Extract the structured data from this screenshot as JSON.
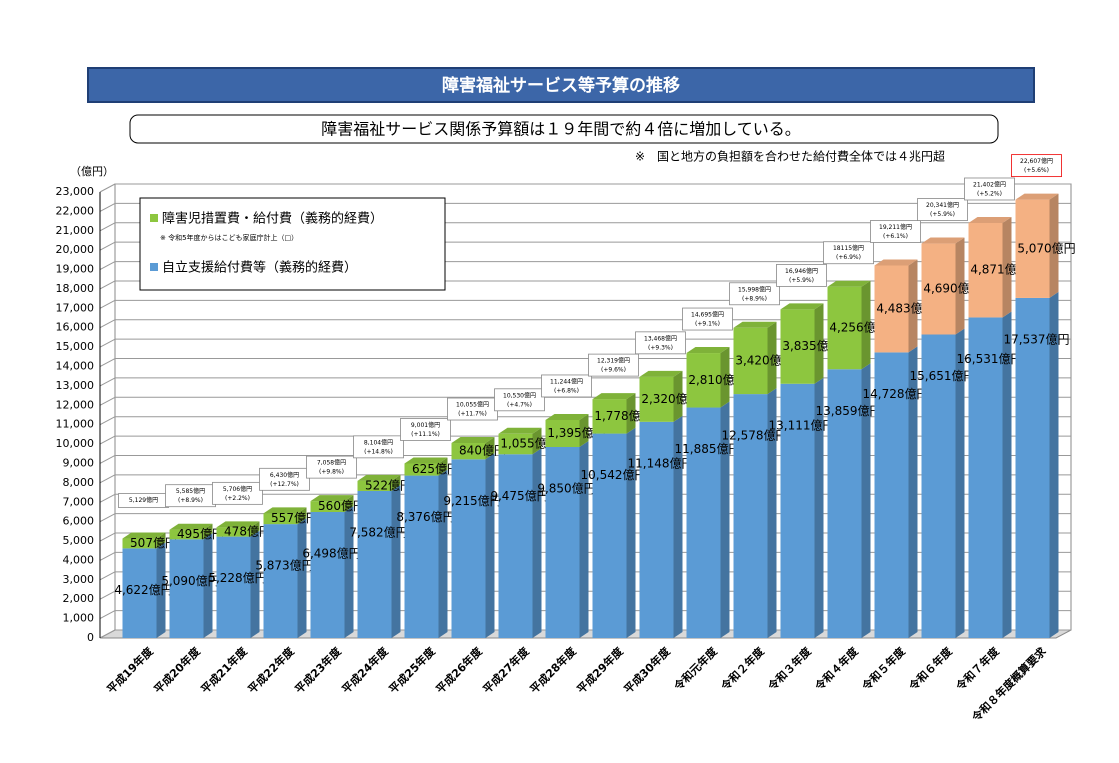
{
  "chart_data": {
    "type": "stacked-bar-3d",
    "title": "障害福祉サービス等予算の推移",
    "subtitle": "障害福祉サービス関係予算額は１９年間で約４倍に増加している。",
    "note": "※　国と地方の負担額を合わせた給付費全体では４兆円超",
    "y_label": "（億円）",
    "categories": [
      "平成19年度",
      "平成20年度",
      "平成21年度",
      "平成22年度",
      "平成23年度",
      "平成24年度",
      "平成25年度",
      "平成26年度",
      "平成27年度",
      "平成28年度",
      "平成29年度",
      "平成30年度",
      "令和元年度",
      "令和２年度",
      "令和３年度",
      "令和４年度",
      "令和５年度",
      "令和６年度",
      "令和７年度",
      "令和８年度概算要求"
    ],
    "series": [
      {
        "name": "自立支援給付費等（義務的経費）",
        "color": "#5b9bd5",
        "values": [
          4622,
          5090,
          5228,
          5873,
          6498,
          7582,
          8376,
          9215,
          9475,
          9850,
          10542,
          11148,
          11885,
          12578,
          13111,
          13859,
          14728,
          15651,
          16531,
          17537
        ],
        "value_labels": [
          "4,622億円",
          "5,090億円",
          "5,228億円",
          "5,873億円",
          "6,498億円",
          "7,582億円",
          "8,376億円",
          "9,215億円",
          "9,475億円",
          "9,850億円",
          "10,542億円",
          "11,148億円",
          "11,885億円",
          "12,578億円",
          "13,111億円",
          "13,859億円",
          "14,728億円",
          "15,651億円",
          "16,531億円",
          "17,537億円"
        ]
      },
      {
        "name": "障害児措置費・給付費（義務的経費）",
        "note": "※ 令和5年度からはこども家庭庁計上（□）",
        "color": "#8dc63f",
        "colors": [
          "#8dc63f",
          "#8dc63f",
          "#8dc63f",
          "#8dc63f",
          "#8dc63f",
          "#8dc63f",
          "#8dc63f",
          "#8dc63f",
          "#8dc63f",
          "#8dc63f",
          "#8dc63f",
          "#8dc63f",
          "#8dc63f",
          "#8dc63f",
          "#8dc63f",
          "#8dc63f",
          "#f4b183",
          "#f4b183",
          "#f4b183",
          "#f4b183"
        ],
        "values": [
          507,
          495,
          478,
          557,
          560,
          522,
          625,
          840,
          1055,
          1395,
          1778,
          2320,
          2810,
          3420,
          3835,
          4256,
          4483,
          4690,
          4871,
          5070
        ],
        "value_labels": [
          "507億円",
          "495億円",
          "478億円",
          "557億円",
          "560億円",
          "522億円",
          "625億円",
          "840億円",
          "1,055億円",
          "1,395億円",
          "1,778億円",
          "2,320億円",
          "2,810億円",
          "3,420億円",
          "3,835億円",
          "4,256億円",
          "4,483億円",
          "4,690億円",
          "4,871億円",
          "5,070億円"
        ]
      }
    ],
    "total_labels": [
      {
        "value": 5129,
        "label": "5,129億円"
      },
      {
        "value": 5585,
        "label": "5,585億円",
        "change": "(+8.9%)"
      },
      {
        "value": 5706,
        "label": "5,706億円",
        "change": "(+2.2%)"
      },
      {
        "value": 6430,
        "label": "6,430億円",
        "change": "(+12.7%)"
      },
      {
        "value": 7058,
        "label": "7,058億円",
        "change": "(+9.8%)"
      },
      {
        "value": 8104,
        "label": "8,104億円",
        "change": "(+14.8%)"
      },
      {
        "value": 9001,
        "label": "9,001億円",
        "change": "(+11.1%)"
      },
      {
        "value": 10055,
        "label": "10,055億円",
        "change": "(+11.7%)"
      },
      {
        "value": 10530,
        "label": "10,530億円",
        "change": "(+4.7%)"
      },
      {
        "value": 11244,
        "label": "11,244億円",
        "change": "(+6.8%)"
      },
      {
        "value": 12319,
        "label": "12,319億円",
        "change": "(+9.6%)"
      },
      {
        "value": 13468,
        "label": "13,468億円",
        "change": "(+9.3%)"
      },
      {
        "value": 14695,
        "label": "14,695億円",
        "change": "(+9.1%)"
      },
      {
        "value": 15998,
        "label": "15,998億円",
        "change": "(+8.9%)"
      },
      {
        "value": 16946,
        "label": "16,946億円",
        "change": "(+5.9%)"
      },
      {
        "value": 18115,
        "label": "18115億円",
        "change": "(+6.9%)"
      },
      {
        "value": 19211,
        "label": "19,211億円",
        "change": "(+6.1%)"
      },
      {
        "value": 20341,
        "label": "20,341億円",
        "change": "(+5.9%)"
      },
      {
        "value": 21402,
        "label": "21,402億円",
        "change": "(+5.2%)"
      },
      {
        "value": 22607,
        "label": "22,607億円",
        "change": "(+5.6%)"
      }
    ],
    "ylim": [
      0,
      23000
    ],
    "yticks": [
      0,
      {
        "value": 1000,
        "label": "1,000"
      },
      {
        "value": 2000,
        "label": "2,000"
      },
      {
        "value": 3000,
        "label": "3,000"
      },
      {
        "value": 4000,
        "label": "4,000"
      },
      {
        "value": 5000,
        "label": "5,000"
      },
      {
        "value": 6000,
        "label": "6,000"
      },
      {
        "value": 7000,
        "label": "7,000"
      },
      {
        "value": 8000,
        "label": "8,000"
      },
      {
        "value": 9000,
        "label": "9,000"
      },
      {
        "value": 10000,
        "label": "10,000"
      },
      {
        "value": 11000,
        "label": "11,000"
      },
      {
        "value": 12000,
        "label": "12,000"
      },
      {
        "value": 13000,
        "label": "13,000"
      },
      {
        "value": 14000,
        "label": "14,000"
      },
      {
        "value": 15000,
        "label": "15,000"
      },
      {
        "value": 16000,
        "label": "16,000"
      },
      {
        "value": 17000,
        "label": "17,000"
      },
      {
        "value": 18000,
        "label": "18,000"
      },
      {
        "value": 19000,
        "label": "19,000"
      },
      {
        "value": 20000,
        "label": "20,000"
      },
      {
        "value": 21000,
        "label": "21,000"
      },
      {
        "value": 22000,
        "label": "22,000"
      },
      {
        "value": 23000,
        "label": "23,000"
      }
    ],
    "grid": true
  }
}
